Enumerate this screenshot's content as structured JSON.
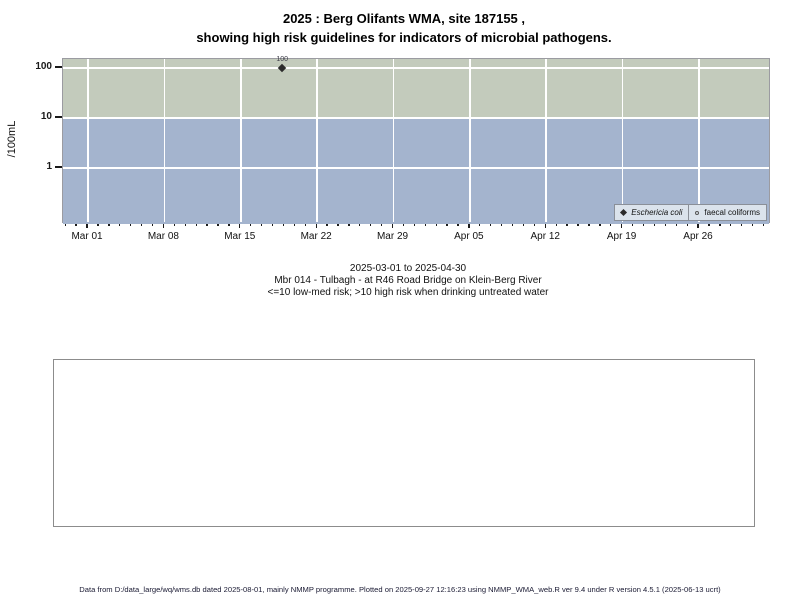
{
  "title": {
    "line1": "2025 : Berg Olifants WMA, site 187155 ,",
    "line2": "showing high risk guidelines for indicators of microbial pathogens."
  },
  "chart_data": {
    "type": "scatter",
    "y_scale": "log",
    "ylabel": "/100mL",
    "y_ticks": [
      100,
      10,
      1
    ],
    "x_ticks": [
      "Mar 01",
      "Mar 08",
      "Mar 15",
      "Mar 22",
      "Mar 29",
      "Apr 05",
      "Apr 12",
      "Apr 19",
      "Apr 26"
    ],
    "x_range_days": 61,
    "grid": true,
    "legend_position": "bottom-right",
    "bands": [
      {
        "name": "high risk (>10)",
        "color": "#c3cbbc",
        "from": 10,
        "to": "top"
      },
      {
        "name": "low-med risk (<=10)",
        "color": "#a4b4ce",
        "from": "bottom",
        "to": 10
      }
    ],
    "series": [
      {
        "name": "Eschericia coli",
        "marker": "filled-diamond",
        "points": [
          {
            "date_approx": "2025-03-19",
            "day_from_mar01": 17.8,
            "value": 100,
            "label": "100"
          }
        ]
      },
      {
        "name": "faecal coliforms",
        "marker": "open-circle",
        "points": []
      }
    ]
  },
  "legend": {
    "items": [
      {
        "label": "Eschericia coli",
        "marker": "filled-diamond"
      },
      {
        "label": "faecal coliforms",
        "marker": "open-circle"
      }
    ]
  },
  "caption": {
    "line1": "2025-03-01 to 2025-04-30",
    "line2": "Mbr 014 - Tulbagh - at R46 Road Bridge on Klein-Berg River",
    "line3": "<=10 low-med risk; >10 high risk when drinking untreated water"
  },
  "footer": "Data from D:/data_large/wq/wms.db dated 2025-08-01, mainly NMMP programme. Plotted on 2025-09-27 12:16:23 using NMMP_WMA_web.R ver 9.4 under R version 4.5.1 (2025-06-13 ucrt)",
  "colors": {
    "high_risk_band": "#c3cbbc",
    "low_med_risk_band": "#a4b4ce",
    "gridline": "#ffffff",
    "point": "#2b2b2b",
    "legend_bg": "#dbe3ec"
  }
}
